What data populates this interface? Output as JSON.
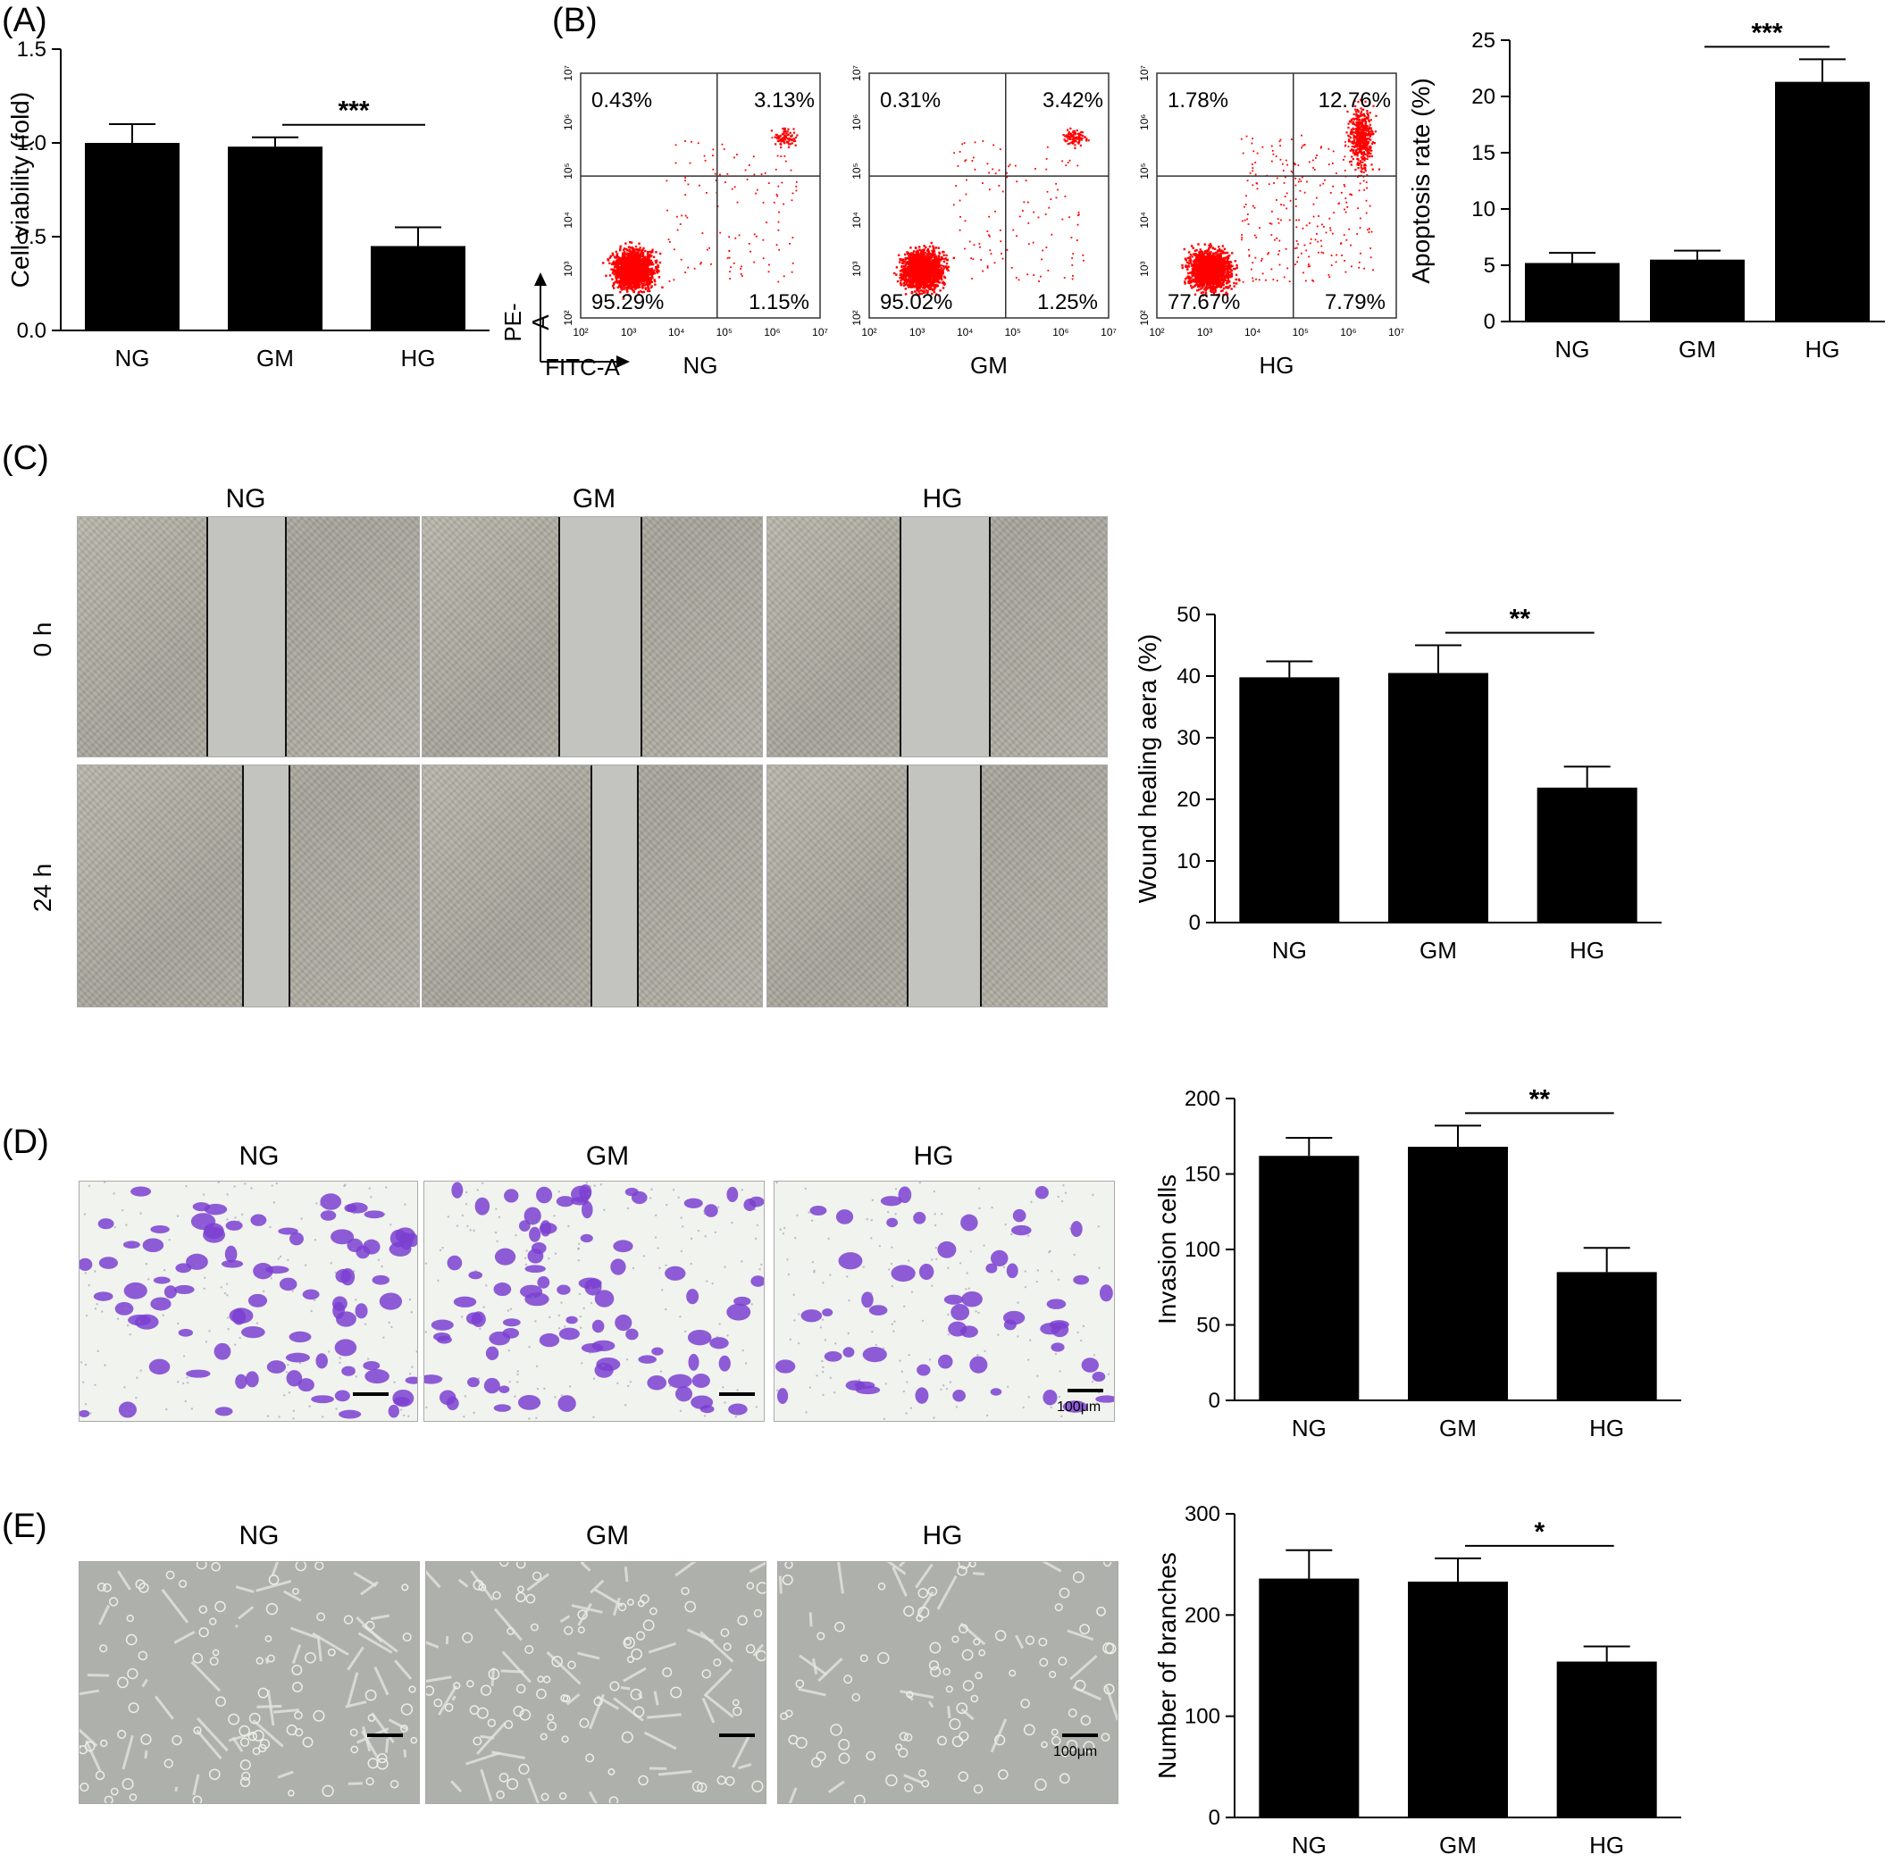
{
  "panels": {
    "A": "(A)",
    "B": "(B)",
    "C": "(C)",
    "D": "(D)",
    "E": "(E)"
  },
  "groups": [
    "NG",
    "GM",
    "HG"
  ],
  "flow": {
    "y_axis_label": "PE-A",
    "x_axis_label": "FITC-A",
    "ticks": [
      "10²",
      "10³",
      "10⁴",
      "10⁵",
      "10⁶",
      "10⁷"
    ],
    "plots": [
      {
        "group": "NG",
        "q1": "0.43%",
        "q2": "3.13%",
        "q3": "1.15%",
        "q4": "95.29%"
      },
      {
        "group": "GM",
        "q1": "0.31%",
        "q2": "3.42%",
        "q3": "1.25%",
        "q4": "95.02%"
      },
      {
        "group": "HG",
        "q1": "1.78%",
        "q2": "12.76%",
        "q3": "7.79%",
        "q4": "77.67%"
      }
    ]
  },
  "wound": {
    "row_labels": [
      "0 h",
      "24 h"
    ]
  },
  "scale_label": "100μm",
  "colors": {
    "bar": "#000000",
    "dots": "#ff0000",
    "stain": "#7b3fd1"
  },
  "chart_data": [
    {
      "type": "bar",
      "panel": "A",
      "categories": [
        "NG",
        "GM",
        "HG"
      ],
      "values": [
        1.0,
        0.98,
        0.45
      ],
      "errors": [
        0.1,
        0.05,
        0.1
      ],
      "ylabel": "Cell viability (fold)",
      "ylim": [
        0,
        1.5
      ],
      "yticks": [
        "0.0",
        "0.5",
        "1.0",
        "1.5"
      ],
      "significance": {
        "from": "GM",
        "to": "HG",
        "label": "***"
      }
    },
    {
      "type": "bar",
      "panel": "B",
      "categories": [
        "NG",
        "GM",
        "HG"
      ],
      "values": [
        5.2,
        5.5,
        21.3
      ],
      "errors": [
        0.9,
        0.8,
        2.0
      ],
      "ylabel": "Apoptosis rate (%)",
      "ylim": [
        0,
        25
      ],
      "yticks": [
        "0",
        "5",
        "10",
        "15",
        "20",
        "25"
      ],
      "significance": {
        "from": "GM",
        "to": "HG",
        "label": "***"
      }
    },
    {
      "type": "bar",
      "panel": "C",
      "categories": [
        "NG",
        "GM",
        "HG"
      ],
      "values": [
        39.8,
        40.5,
        21.9
      ],
      "errors": [
        2.6,
        4.5,
        3.4
      ],
      "ylabel": "Wound healing aera (%)",
      "ylim": [
        0,
        50
      ],
      "yticks": [
        "0",
        "10",
        "20",
        "30",
        "40",
        "50"
      ],
      "significance": {
        "from": "GM",
        "to": "HG",
        "label": "**"
      }
    },
    {
      "type": "bar",
      "panel": "D",
      "categories": [
        "NG",
        "GM",
        "HG"
      ],
      "values": [
        162,
        168,
        85
      ],
      "errors": [
        12,
        14,
        16
      ],
      "ylabel": "Invasion cells",
      "ylim": [
        0,
        200
      ],
      "yticks": [
        "0",
        "50",
        "100",
        "150",
        "200"
      ],
      "significance": {
        "from": "GM",
        "to": "HG",
        "label": "**"
      }
    },
    {
      "type": "bar",
      "panel": "E",
      "categories": [
        "NG",
        "GM",
        "HG"
      ],
      "values": [
        236,
        233,
        154
      ],
      "errors": [
        28,
        23,
        15
      ],
      "ylabel": "Number of branches",
      "ylim": [
        0,
        300
      ],
      "yticks": [
        "0",
        "100",
        "200",
        "300"
      ],
      "significance": {
        "from": "GM",
        "to": "HG",
        "label": "*"
      }
    }
  ]
}
